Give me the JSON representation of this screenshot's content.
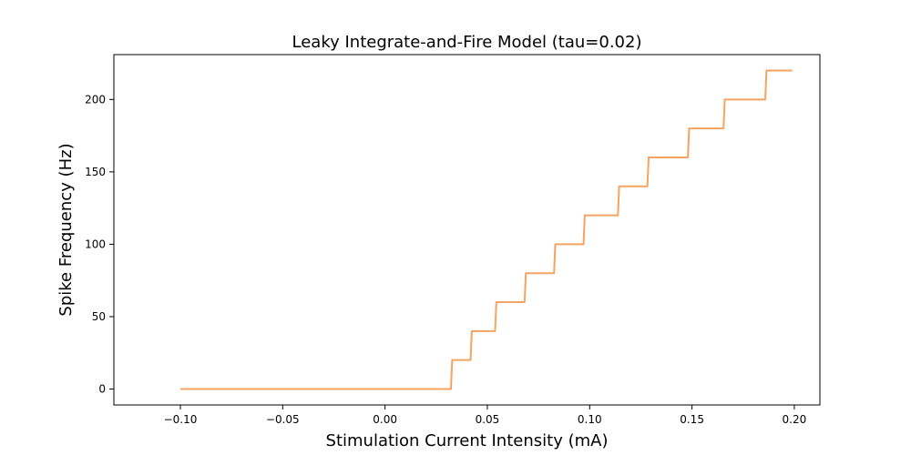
{
  "chart_data": {
    "type": "line",
    "title": "Leaky Integrate-and-Fire Model (tau=0.02)",
    "xlabel": "Stimulation Current Intensity (mA)",
    "ylabel": "Spike Frequency (Hz)",
    "xlim": [
      -0.1325,
      0.2125
    ],
    "ylim": [
      -11,
      231
    ],
    "xticks": [
      -0.1,
      -0.05,
      0.0,
      0.05,
      0.1,
      0.15,
      0.2
    ],
    "xtick_labels": [
      "−0.10",
      "−0.05",
      "0.00",
      "0.05",
      "0.10",
      "0.15",
      "0.20"
    ],
    "yticks": [
      0,
      50,
      100,
      150,
      200
    ],
    "ytick_labels": [
      "0",
      "50",
      "100",
      "150",
      "200"
    ],
    "grid": false,
    "series": [
      {
        "color": "#f4a460",
        "x": [
          -0.1,
          0.0322,
          0.0328,
          0.0418,
          0.0424,
          0.0538,
          0.0544,
          0.0682,
          0.0688,
          0.0826,
          0.0832,
          0.097,
          0.0976,
          0.1138,
          0.1144,
          0.1282,
          0.1288,
          0.148,
          0.1486,
          0.1654,
          0.166,
          0.1858,
          0.1864,
          0.199
        ],
        "y": [
          0,
          0,
          20,
          20,
          40,
          40,
          60,
          60,
          80,
          80,
          100,
          100,
          120,
          120,
          140,
          140,
          160,
          160,
          180,
          180,
          200,
          200,
          220,
          220
        ]
      }
    ]
  }
}
